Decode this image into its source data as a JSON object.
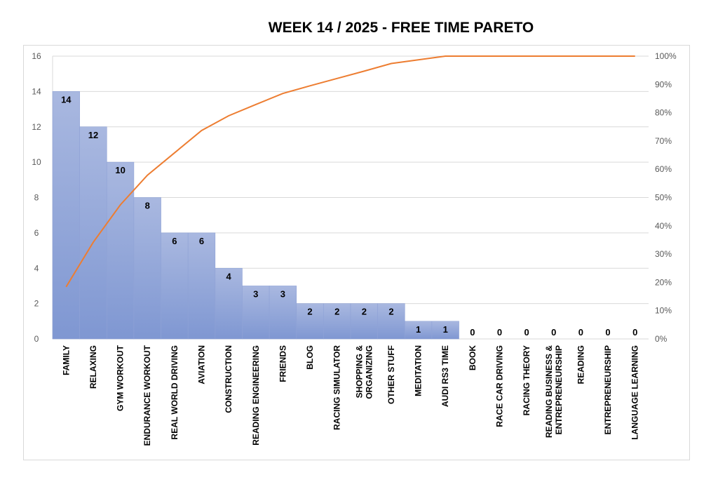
{
  "chart_data": {
    "type": "bar",
    "title": "WEEK  14  / 2025   - FREE TIME PARETO",
    "categories": [
      "FAMILY",
      "RELAXING",
      "GYM WORKOUT",
      "ENDURANCE WORKOUT",
      "REAL WORLD DRIVING",
      "AVIATION",
      "CONSTRUCTION",
      "READING ENGINEERING",
      "FRIENDS",
      "BLOG",
      "RACING SIMULATOR",
      "SHOPPING & ORGANIZING",
      "OTHER STUFF",
      "MEDITATION",
      "AUDI RS3 TIME",
      "BOOK",
      "RACE CAR DRIVING",
      "RACING THEORY",
      "READING BUSINESS & ENTREPRENEURSHIP",
      "READING",
      "ENTREPRENEURSHIP",
      "LANGUAGE LEARNING"
    ],
    "series": [
      {
        "type": "bar",
        "values": [
          14,
          12,
          10,
          8,
          6,
          6,
          4,
          3,
          3,
          2,
          2,
          2,
          2,
          1,
          1,
          0,
          0,
          0,
          0,
          0,
          0,
          0
        ]
      },
      {
        "type": "line",
        "axis": "right",
        "values": [
          18.4,
          34.2,
          47.4,
          57.9,
          65.8,
          73.7,
          78.9,
          82.9,
          86.8,
          89.5,
          92.1,
          94.7,
          97.4,
          98.7,
          100,
          100,
          100,
          100,
          100,
          100,
          100,
          100
        ]
      }
    ],
    "ylim": [
      0,
      16
    ],
    "y_ticks": [
      "0",
      "2",
      "4",
      "6",
      "8",
      "10",
      "12",
      "14",
      "16"
    ],
    "y2lim": [
      0,
      100
    ],
    "y2_ticks": [
      "0%",
      "10%",
      "20%",
      "30%",
      "40%",
      "50%",
      "60%",
      "70%",
      "80%",
      "90%",
      "100%"
    ],
    "grid": true,
    "legend": "none",
    "colors": {
      "bar_top": "#a9b8e0",
      "bar_bottom": "#7f97d2",
      "bar_edge": "#8fa2d6",
      "line": "#ed7d31",
      "grid": "#d9d9d9"
    }
  }
}
